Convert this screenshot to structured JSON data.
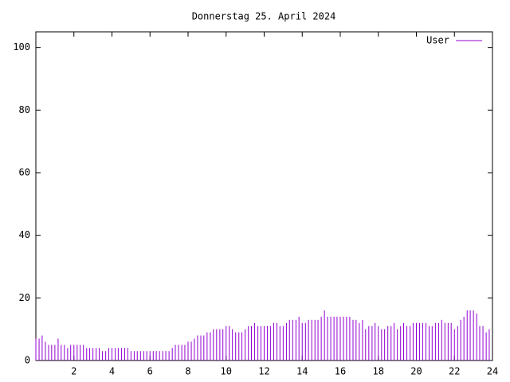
{
  "chart_data": {
    "type": "impulse",
    "title": "Donnerstag 25. April 2024",
    "x": [
      0,
      0.17,
      0.33,
      0.5,
      0.67,
      0.83,
      1,
      1.17,
      1.33,
      1.5,
      1.67,
      1.83,
      2,
      2.17,
      2.33,
      2.5,
      2.67,
      2.83,
      3,
      3.17,
      3.33,
      3.5,
      3.67,
      3.83,
      4,
      4.17,
      4.33,
      4.5,
      4.67,
      4.83,
      5,
      5.17,
      5.33,
      5.5,
      5.67,
      5.83,
      6,
      6.17,
      6.33,
      6.5,
      6.67,
      6.83,
      7,
      7.17,
      7.33,
      7.5,
      7.67,
      7.83,
      8,
      8.17,
      8.33,
      8.5,
      8.67,
      8.83,
      9,
      9.17,
      9.33,
      9.5,
      9.67,
      9.83,
      10,
      10.17,
      10.33,
      10.5,
      10.67,
      10.83,
      11,
      11.17,
      11.33,
      11.5,
      11.67,
      11.83,
      12,
      12.17,
      12.33,
      12.5,
      12.67,
      12.83,
      13,
      13.17,
      13.33,
      13.5,
      13.67,
      13.83,
      14,
      14.17,
      14.33,
      14.5,
      14.67,
      14.83,
      15,
      15.17,
      15.33,
      15.5,
      15.67,
      15.83,
      16,
      16.17,
      16.33,
      16.5,
      16.67,
      16.83,
      17,
      17.17,
      17.33,
      17.5,
      17.67,
      17.83,
      18,
      18.17,
      18.33,
      18.5,
      18.67,
      18.83,
      19,
      19.17,
      19.33,
      19.5,
      19.67,
      19.83,
      20,
      20.17,
      20.33,
      20.5,
      20.67,
      20.83,
      21,
      21.17,
      21.33,
      21.5,
      21.67,
      21.83,
      22,
      22.17,
      22.33,
      22.5,
      22.67,
      22.83,
      23,
      23.17,
      23.33,
      23.5,
      23.67,
      23.83
    ],
    "series": [
      {
        "name": "User",
        "color": "#9400d3",
        "values": [
          7,
          7,
          8,
          6,
          5,
          5,
          5,
          7,
          5,
          5,
          4,
          5,
          5,
          5,
          5,
          5,
          4,
          4,
          4,
          4,
          4,
          3,
          3,
          4,
          4,
          4,
          4,
          4,
          4,
          4,
          3,
          3,
          3,
          3,
          3,
          3,
          3,
          3,
          3,
          3,
          3,
          3,
          3,
          4,
          5,
          5,
          5,
          5,
          6,
          6,
          7,
          8,
          8,
          8,
          9,
          9,
          10,
          10,
          10,
          10,
          11,
          11,
          10,
          9,
          9,
          9,
          10,
          11,
          11,
          12,
          11,
          11,
          11,
          11,
          11,
          12,
          12,
          11,
          11,
          12,
          13,
          13,
          13,
          14,
          12,
          12,
          13,
          13,
          13,
          13,
          14,
          16,
          14,
          14,
          14,
          14,
          14,
          14,
          14,
          14,
          13,
          13,
          12,
          13,
          10,
          11,
          11,
          12,
          11,
          10,
          10,
          11,
          11,
          12,
          10,
          11,
          12,
          11,
          11,
          12,
          12,
          12,
          12,
          12,
          11,
          11,
          12,
          12,
          13,
          12,
          12,
          12,
          10,
          11,
          13,
          14,
          16,
          16,
          16,
          15,
          11,
          11,
          9,
          10
        ]
      }
    ],
    "xlim": [
      0,
      24
    ],
    "xticks": [
      2,
      4,
      6,
      8,
      10,
      12,
      14,
      16,
      18,
      20,
      22,
      24
    ],
    "ylim": [
      0,
      105
    ],
    "yticks": [
      0,
      20,
      40,
      60,
      80,
      100
    ],
    "legend": "top-right"
  }
}
